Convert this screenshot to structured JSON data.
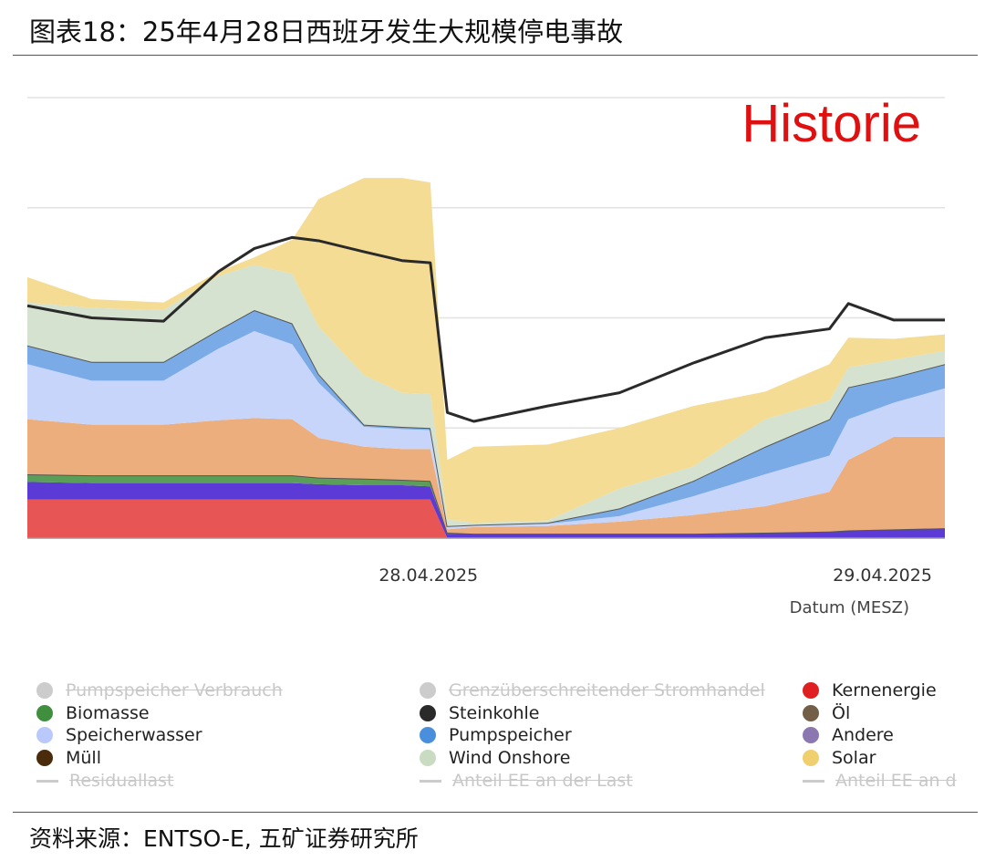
{
  "title": "图表18：25年4月28日西班牙发生大规模停电事故",
  "source": "资料来源：ENTSO-E, 五矿证券研究所",
  "chart_data": {
    "type": "area",
    "stacked": true,
    "watermark": "Historie",
    "xlabel": "Datum (MESZ)",
    "ylabel": "",
    "x_unit": "hours relative to 28.04.2025 tick",
    "xlim": [
      -21.2,
      27.3
    ],
    "ylim": [
      0,
      40
    ],
    "grid": true,
    "gridlines": [
      10,
      20,
      30,
      40
    ],
    "x_ticks": [
      {
        "x": 0,
        "label": "28.04.2025"
      },
      {
        "x": 24,
        "label": "29.04.2025"
      }
    ],
    "x": [
      -21.2,
      -17.8,
      -14.0,
      -11.1,
      -9.2,
      -7.2,
      -5.8,
      -3.4,
      -1.4,
      0.1,
      1.0,
      2.4,
      6.3,
      10.1,
      14.0,
      17.8,
      21.2,
      22.2,
      24.6,
      27.3
    ],
    "series": [
      {
        "name": "Kernenergie",
        "color": "#e85555",
        "values": [
          3.5,
          3.5,
          3.5,
          3.5,
          3.5,
          3.5,
          3.5,
          3.5,
          3.5,
          3.5,
          0,
          0,
          0,
          0,
          0,
          0,
          0,
          0,
          0,
          0
        ]
      },
      {
        "name": "Andere",
        "color": "#5b3ad6",
        "values": [
          1.6,
          1.5,
          1.5,
          1.5,
          1.5,
          1.5,
          1.4,
          1.3,
          1.3,
          1.2,
          0.4,
          0.4,
          0.4,
          0.4,
          0.4,
          0.5,
          0.6,
          0.7,
          0.8,
          0.9
        ]
      },
      {
        "name": "Biomasse",
        "color": "#5a9e5a",
        "values": [
          0.7,
          0.7,
          0.7,
          0.7,
          0.7,
          0.7,
          0.6,
          0.6,
          0.5,
          0.5,
          0.1,
          0,
          0,
          0,
          0,
          0,
          0,
          0,
          0,
          0
        ]
      },
      {
        "name": "",
        "color": "#ecae7c",
        "values": [
          5.0,
          4.6,
          4.6,
          5.0,
          5.2,
          5.1,
          3.6,
          2.9,
          2.8,
          2.9,
          0.3,
          0.6,
          0.7,
          1.1,
          1.7,
          2.4,
          3.6,
          6.4,
          8.4,
          8.3
        ]
      },
      {
        "name": "Speicherwasser",
        "color": "#c8d5fb",
        "values": [
          5.0,
          4.0,
          4.0,
          6.5,
          7.9,
          6.8,
          5.0,
          1.8,
          1.8,
          1.7,
          0.2,
          0.2,
          0.2,
          0.5,
          1.7,
          2.9,
          3.3,
          3.7,
          3.1,
          4.4
        ]
      },
      {
        "name": "Pumpspeicher",
        "color": "#7aabe6",
        "values": [
          1.7,
          1.7,
          1.7,
          1.7,
          1.9,
          1.9,
          0.8,
          0.2,
          0.2,
          0.2,
          0.1,
          0,
          0.1,
          0.7,
          1.4,
          2.5,
          3.3,
          2.9,
          2.3,
          2.2
        ]
      },
      {
        "name": "Wind Onshore",
        "color": "#d4e2cf",
        "values": [
          3.9,
          4.9,
          4.7,
          4.9,
          4.1,
          4.5,
          4.3,
          4.5,
          3.1,
          3.1,
          0.6,
          0.2,
          0.2,
          1.8,
          1.3,
          2.5,
          1.7,
          1.8,
          1.6,
          1.2
        ]
      },
      {
        "name": "Solar",
        "color": "#f4dc94",
        "values": [
          2.3,
          0.8,
          0.7,
          0.4,
          0.7,
          3.1,
          11.6,
          17.9,
          19.5,
          19.2,
          5.4,
          6.9,
          6.9,
          5.5,
          5.5,
          2.5,
          3.3,
          2.7,
          1.9,
          1.5
        ]
      }
    ],
    "line": {
      "name": "Last",
      "color": "#2a2a2a",
      "values": [
        21.1,
        20.0,
        19.7,
        24.2,
        26.3,
        27.3,
        27.0,
        26.0,
        25.2,
        25.0,
        11.4,
        10.6,
        12.0,
        13.2,
        15.9,
        18.2,
        19.0,
        21.3,
        19.8,
        19.8
      ]
    },
    "legend": [
      {
        "label": "Pumpspeicher Verbrauch",
        "color": "#cccccc",
        "shape": "dot",
        "hidden": true
      },
      {
        "label": "Biomasse",
        "color": "#3f8f3f",
        "shape": "dot"
      },
      {
        "label": "Speicherwasser",
        "color": "#b9c9fb",
        "shape": "dot"
      },
      {
        "label": "Müll",
        "color": "#4a2c0c",
        "shape": "dot"
      },
      {
        "label": "Residuallast",
        "color": "#cccccc",
        "shape": "line",
        "hidden": true
      },
      {
        "label": "Grenzüberschreitender Stromhandel",
        "color": "#cccccc",
        "shape": "dot",
        "hidden": true
      },
      {
        "label": "Steinkohle",
        "color": "#2a2a2a",
        "shape": "dot"
      },
      {
        "label": "Pumpspeicher",
        "color": "#4a8fdc",
        "shape": "dot"
      },
      {
        "label": "Wind Onshore",
        "color": "#c9dcc2",
        "shape": "dot"
      },
      {
        "label": "Anteil EE an der Last",
        "color": "#cccccc",
        "shape": "line",
        "hidden": true
      },
      {
        "label": "Kernenergie",
        "color": "#e02020",
        "shape": "dot"
      },
      {
        "label": "Öl",
        "color": "#735f48",
        "shape": "dot"
      },
      {
        "label": "Andere",
        "color": "#8c78b0",
        "shape": "dot"
      },
      {
        "label": "Solar",
        "color": "#f0cf6e",
        "shape": "dot"
      },
      {
        "label": "Anteil EE an d",
        "color": "#cccccc",
        "shape": "line",
        "hidden": true
      }
    ],
    "legend_placement": "bottom"
  }
}
